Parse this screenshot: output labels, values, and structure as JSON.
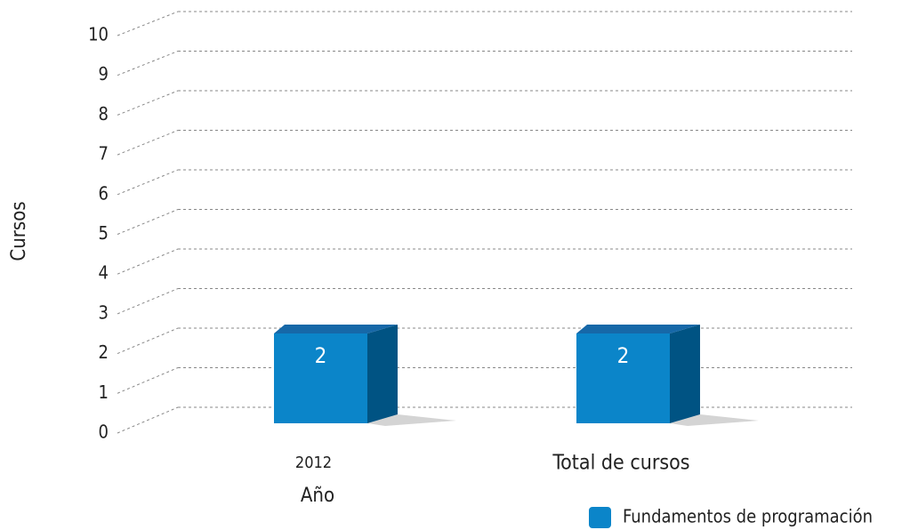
{
  "chart_data": {
    "type": "bar3d",
    "categories": [
      "2012",
      "Total de cursos"
    ],
    "series": [
      {
        "name": "Fundamentos de programación",
        "color": "#0b85c9",
        "values": [
          2,
          2
        ]
      }
    ],
    "xlabel": "Año",
    "ylabel": "Cursos",
    "ylim": [
      0,
      10
    ],
    "yticks": [
      0,
      1,
      2,
      3,
      4,
      5,
      6,
      7,
      8,
      9,
      10
    ],
    "grid": true,
    "legend": "bottom-right"
  }
}
